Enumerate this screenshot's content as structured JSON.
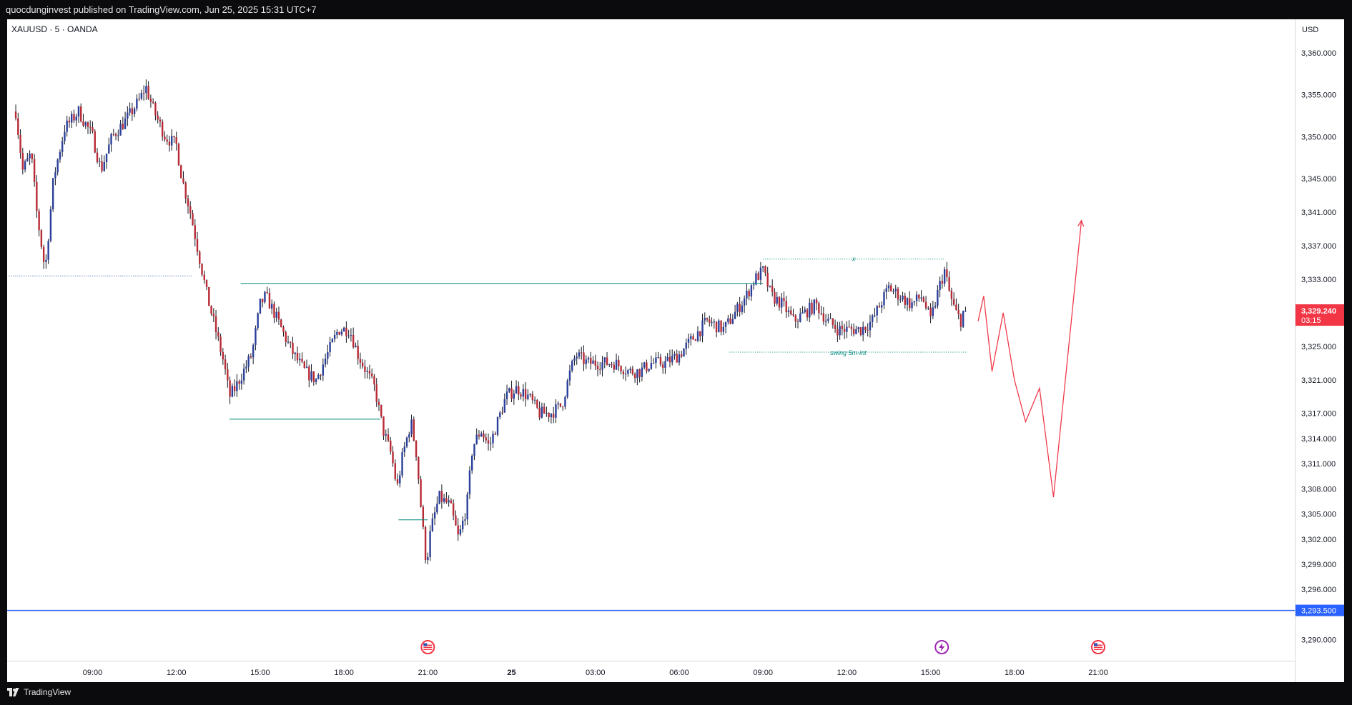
{
  "header": {
    "publish_text": "quocdunginvest published on TradingView.com, Jun 25, 2025 15:31 UTC+7"
  },
  "chart_header": {
    "symbol": "XAUUSD · 5 · OANDA",
    "currency": "USD"
  },
  "footer": {
    "brand": "TradingView"
  },
  "colors": {
    "up": "#2a3f9a",
    "down": "#b72a35",
    "wick": "#131722",
    "level_blue": "#2962ff",
    "projection": "#f03a4a",
    "teal": "#00897b",
    "price_tag": "#f23645"
  },
  "chart_data": {
    "type": "candlestick",
    "y_range": [
      3287.5,
      3364.0
    ],
    "x_axis_ticks": [
      {
        "t": 9,
        "label": "09:00"
      },
      {
        "t": 12,
        "label": "12:00"
      },
      {
        "t": 15,
        "label": "15:00"
      },
      {
        "t": 18,
        "label": "18:00"
      },
      {
        "t": 21,
        "label": "21:00"
      },
      {
        "t": 24,
        "label": "25"
      },
      {
        "t": 27,
        "label": "03:00"
      },
      {
        "t": 30,
        "label": "06:00"
      },
      {
        "t": 33,
        "label": "09:00"
      },
      {
        "t": 36,
        "label": "12:00"
      },
      {
        "t": 39,
        "label": "15:00"
      },
      {
        "t": 42,
        "label": "18:00"
      },
      {
        "t": 45,
        "label": "21:00"
      }
    ],
    "y_axis_ticks": [
      {
        "v": 3360.0,
        "label": "3,360.000"
      },
      {
        "v": 3355.0,
        "label": "3,355.000"
      },
      {
        "v": 3350.0,
        "label": "3,350.000"
      },
      {
        "v": 3345.0,
        "label": "3,345.000"
      },
      {
        "v": 3341.0,
        "label": "3,341.000"
      },
      {
        "v": 3337.0,
        "label": "3,337.000"
      },
      {
        "v": 3333.0,
        "label": "3,333.000"
      },
      {
        "v": 3325.0,
        "label": "3,325.000"
      },
      {
        "v": 3321.0,
        "label": "3,321.000"
      },
      {
        "v": 3317.0,
        "label": "3,317.000"
      },
      {
        "v": 3314.0,
        "label": "3,314.000"
      },
      {
        "v": 3311.0,
        "label": "3,311.000"
      },
      {
        "v": 3308.0,
        "label": "3,308.000"
      },
      {
        "v": 3305.0,
        "label": "3,305.000"
      },
      {
        "v": 3302.0,
        "label": "3,302.000"
      },
      {
        "v": 3299.0,
        "label": "3,299.000"
      },
      {
        "v": 3296.0,
        "label": "3,296.000"
      },
      {
        "v": 3290.0,
        "label": "3,290.000"
      }
    ],
    "path_points": [
      [
        6.25,
        3353.0
      ],
      [
        6.5,
        3346.0
      ],
      [
        6.8,
        3348.0
      ],
      [
        7.0,
        3341.0
      ],
      [
        7.3,
        3334.0
      ],
      [
        7.6,
        3345.0
      ],
      [
        8.0,
        3351.0
      ],
      [
        8.5,
        3353.0
      ],
      [
        9.0,
        3350.0
      ],
      [
        9.3,
        3346.0
      ],
      [
        9.7,
        3350.0
      ],
      [
        10.2,
        3352.0
      ],
      [
        10.7,
        3354.5
      ],
      [
        10.9,
        3356.0
      ],
      [
        11.2,
        3353.0
      ],
      [
        11.6,
        3350.0
      ],
      [
        12.0,
        3349.0
      ],
      [
        12.2,
        3345.0
      ],
      [
        12.5,
        3341.0
      ],
      [
        12.8,
        3336.0
      ],
      [
        13.1,
        3331.0
      ],
      [
        13.4,
        3327.0
      ],
      [
        13.7,
        3323.0
      ],
      [
        13.9,
        3319.0
      ],
      [
        14.1,
        3320.0
      ],
      [
        14.4,
        3322.0
      ],
      [
        14.7,
        3324.0
      ],
      [
        15.0,
        3330.0
      ],
      [
        15.2,
        3331.0
      ],
      [
        15.5,
        3329.0
      ],
      [
        15.9,
        3326.0
      ],
      [
        16.2,
        3324.0
      ],
      [
        16.6,
        3322.0
      ],
      [
        17.0,
        3321.0
      ],
      [
        17.4,
        3324.0
      ],
      [
        17.8,
        3327.0
      ],
      [
        18.2,
        3327.0
      ],
      [
        18.5,
        3324.0
      ],
      [
        18.8,
        3322.0
      ],
      [
        19.1,
        3320.0
      ],
      [
        19.4,
        3315.0
      ],
      [
        19.7,
        3312.0
      ],
      [
        19.9,
        3308.0
      ],
      [
        20.1,
        3312.0
      ],
      [
        20.4,
        3316.0
      ],
      [
        20.6,
        3312.0
      ],
      [
        20.8,
        3304.0
      ],
      [
        20.95,
        3299.0
      ],
      [
        21.1,
        3303.0
      ],
      [
        21.4,
        3307.0
      ],
      [
        21.8,
        3306.0
      ],
      [
        22.1,
        3302.0
      ],
      [
        22.4,
        3306.0
      ],
      [
        22.6,
        3313.0
      ],
      [
        22.9,
        3315.0
      ],
      [
        23.2,
        3313.0
      ],
      [
        23.5,
        3316.0
      ],
      [
        23.8,
        3319.0
      ],
      [
        24.2,
        3320.0
      ],
      [
        24.6,
        3319.0
      ],
      [
        25.0,
        3317.0
      ],
      [
        25.4,
        3317.0
      ],
      [
        25.8,
        3318.0
      ],
      [
        26.1,
        3322.0
      ],
      [
        26.3,
        3324.0
      ],
      [
        26.7,
        3323.0
      ],
      [
        27.2,
        3323.0
      ],
      [
        27.7,
        3323.0
      ],
      [
        28.2,
        3322.0
      ],
      [
        28.6,
        3322.0
      ],
      [
        29.0,
        3323.0
      ],
      [
        29.5,
        3323.0
      ],
      [
        30.0,
        3324.0
      ],
      [
        30.5,
        3326.0
      ],
      [
        31.0,
        3328.0
      ],
      [
        31.6,
        3327.0
      ],
      [
        32.0,
        3329.0
      ],
      [
        32.4,
        3331.0
      ],
      [
        32.7,
        3333.0
      ],
      [
        33.0,
        3334.0
      ],
      [
        33.3,
        3331.0
      ],
      [
        33.7,
        3330.0
      ],
      [
        34.1,
        3328.0
      ],
      [
        34.5,
        3329.0
      ],
      [
        34.9,
        3330.0
      ],
      [
        35.3,
        3328.0
      ],
      [
        35.7,
        3327.0
      ],
      [
        36.1,
        3327.0
      ],
      [
        36.5,
        3327.0
      ],
      [
        36.9,
        3328.0
      ],
      [
        37.2,
        3330.0
      ],
      [
        37.5,
        3332.0
      ],
      [
        37.9,
        3331.0
      ],
      [
        38.3,
        3330.0
      ],
      [
        38.7,
        3331.0
      ],
      [
        39.0,
        3328.0
      ],
      [
        39.3,
        3332.0
      ],
      [
        39.5,
        3334.0
      ],
      [
        39.7,
        3331.0
      ],
      [
        39.9,
        3329.0
      ],
      [
        40.1,
        3328.0
      ],
      [
        40.25,
        3329.0
      ]
    ],
    "last_price": {
      "value": 3329.24,
      "label": "3,329.240",
      "countdown": "03:15"
    },
    "levels": [
      {
        "name": "blue-level",
        "value": 3293.5,
        "label": "3,293.500"
      },
      {
        "name": "dotted-level-left",
        "value": 3333.4,
        "t_start": 6.0,
        "t_end": 12.6
      },
      {
        "name": "teal-resistance",
        "value": 3332.5,
        "t_start": 14.3,
        "t_end": 33.0
      },
      {
        "name": "teal-support",
        "value": 3316.3,
        "t_start": 13.9,
        "t_end": 19.3
      },
      {
        "name": "teal-swing-low",
        "value": 3304.3,
        "t_start": 19.95,
        "t_end": 21.0
      },
      {
        "name": "x-level",
        "value": 3335.4,
        "t_start": 33.0,
        "t_end": 39.5,
        "label": "x"
      },
      {
        "name": "swing-level",
        "value": 3324.3,
        "t_start": 31.8,
        "t_end": 40.3,
        "label": "swing 5m-int"
      }
    ],
    "projection_path": [
      [
        40.7,
        3328.0
      ],
      [
        40.9,
        3331.0
      ],
      [
        41.2,
        3322.0
      ],
      [
        41.6,
        3329.0
      ],
      [
        42.0,
        3321.0
      ],
      [
        42.4,
        3316.0
      ],
      [
        42.9,
        3320.0
      ],
      [
        43.4,
        3307.0
      ],
      [
        44.4,
        3340.0
      ]
    ],
    "event_markers": [
      {
        "t": 21.0,
        "kind": "us-flag"
      },
      {
        "t": 39.4,
        "kind": "lightning"
      },
      {
        "t": 45.0,
        "kind": "us-flag"
      }
    ]
  }
}
